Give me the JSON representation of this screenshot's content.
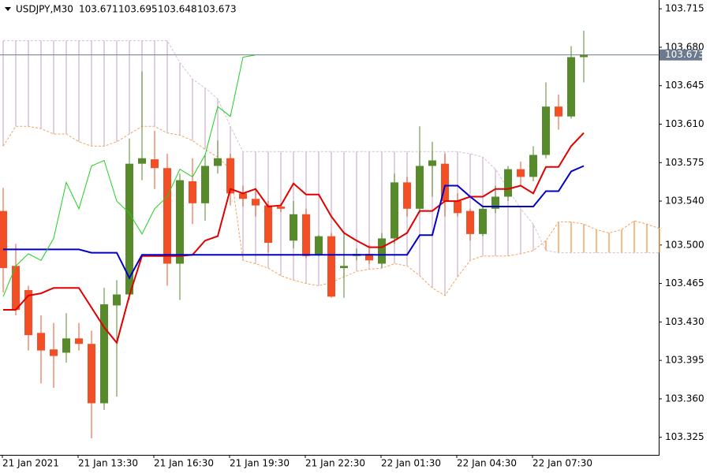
{
  "chart_data": {
    "type": "candlestick",
    "symbol": "USDJPY,M30",
    "header_values": [
      103.671,
      103.695,
      103.648,
      103.673
    ],
    "x": [
      "21 Jan 2021",
      null,
      null,
      null,
      null,
      null,
      "21 Jan 13:30",
      null,
      null,
      null,
      null,
      null,
      "21 Jan 16:30",
      null,
      null,
      null,
      null,
      null,
      "21 Jan 19:30",
      null,
      null,
      null,
      null,
      null,
      "21 Jan 22:30",
      null,
      null,
      null,
      null,
      null,
      "22 Jan 01:30",
      null,
      null,
      null,
      null,
      null,
      "22 Jan 04:30",
      null,
      null,
      null,
      null,
      null,
      "22 Jan 07:30",
      null,
      null,
      null,
      null,
      null,
      null,
      null,
      null,
      null,
      null
    ],
    "open": [
      103.531,
      103.481,
      103.459,
      103.42,
      103.405,
      103.402,
      103.415,
      103.41,
      103.356,
      103.445,
      103.455,
      103.574,
      103.578,
      103.57,
      103.483,
      103.558,
      103.538,
      103.572,
      103.579,
      103.547,
      103.542,
      103.536,
      103.535,
      103.504,
      103.528,
      103.491,
      103.508,
      103.479,
      103.49,
      103.492,
      103.483,
      103.506,
      103.557,
      103.533,
      103.572,
      103.574,
      103.54,
      103.531,
      103.51,
      103.533,
      103.544,
      103.569,
      103.562,
      103.582,
      103.626,
      103.617,
      103.671,
      null,
      null,
      null,
      null,
      null,
      null
    ],
    "high": [
      103.552,
      103.501,
      103.463,
      103.436,
      103.429,
      103.438,
      103.429,
      103.422,
      103.461,
      103.468,
      103.597,
      103.658,
      103.604,
      103.583,
      103.565,
      103.579,
      103.583,
      103.595,
      103.583,
      103.554,
      103.551,
      103.54,
      103.538,
      103.54,
      103.533,
      103.509,
      103.511,
      103.511,
      103.497,
      103.5,
      103.511,
      103.565,
      103.562,
      103.608,
      103.594,
      103.583,
      103.547,
      103.533,
      103.536,
      103.554,
      103.572,
      103.576,
      103.59,
      103.648,
      103.637,
      103.681,
      103.695,
      null,
      null,
      null,
      null,
      null,
      null
    ],
    "low": [
      103.457,
      103.436,
      103.404,
      103.374,
      103.37,
      103.393,
      103.404,
      103.324,
      103.35,
      103.362,
      103.45,
      103.559,
      103.551,
      103.463,
      103.45,
      103.519,
      103.522,
      103.565,
      103.536,
      103.535,
      103.526,
      103.493,
      103.53,
      103.497,
      103.488,
      103.49,
      103.452,
      103.452,
      103.486,
      103.483,
      103.479,
      103.501,
      103.526,
      103.529,
      103.544,
      103.526,
      103.526,
      103.504,
      103.508,
      103.529,
      103.54,
      103.554,
      103.558,
      103.579,
      103.605,
      103.615,
      103.648,
      null,
      null,
      null,
      null,
      null,
      null
    ],
    "close": [
      103.479,
      103.441,
      103.418,
      103.404,
      103.399,
      103.415,
      103.41,
      103.356,
      103.446,
      103.455,
      103.574,
      103.579,
      103.57,
      103.483,
      103.559,
      103.538,
      103.572,
      103.579,
      103.547,
      103.542,
      103.536,
      103.502,
      103.533,
      103.528,
      103.49,
      103.508,
      103.453,
      103.481,
      103.492,
      103.486,
      103.506,
      103.557,
      103.533,
      103.572,
      103.577,
      103.54,
      103.529,
      103.51,
      103.533,
      103.544,
      103.569,
      103.562,
      103.582,
      103.626,
      103.617,
      103.671,
      103.673,
      null,
      null,
      null,
      null,
      null,
      null
    ],
    "up_color": "#568a2a",
    "down_color": "#f24f26",
    "lines": [
      {
        "color": "#e00000",
        "width": 2,
        "values": [
          103.441,
          103.441,
          103.454,
          103.456,
          103.461,
          103.461,
          103.461,
          103.443,
          103.425,
          103.411,
          103.454,
          103.49,
          103.49,
          103.49,
          103.49,
          103.491,
          103.504,
          103.508,
          103.551,
          103.547,
          103.551,
          103.535,
          103.536,
          103.556,
          103.546,
          103.546,
          103.526,
          103.511,
          103.504,
          103.498,
          103.498,
          103.504,
          103.511,
          103.531,
          103.531,
          103.54,
          103.54,
          103.544,
          103.544,
          103.551,
          103.551,
          103.554,
          103.547,
          103.571,
          103.571,
          103.59,
          103.602,
          null,
          null,
          null,
          null,
          null,
          null
        ]
      },
      {
        "color": "#0000c8",
        "width": 2,
        "values": [
          103.496,
          103.496,
          103.496,
          103.496,
          103.496,
          103.496,
          103.496,
          103.493,
          103.493,
          103.493,
          103.47,
          103.491,
          103.491,
          103.491,
          103.491,
          103.491,
          103.491,
          103.491,
          103.491,
          103.491,
          103.491,
          103.491,
          103.491,
          103.491,
          103.491,
          103.491,
          103.491,
          103.491,
          103.491,
          103.491,
          103.491,
          103.491,
          103.491,
          103.509,
          103.509,
          103.554,
          103.554,
          103.544,
          103.535,
          103.535,
          103.535,
          103.535,
          103.535,
          103.549,
          103.549,
          103.567,
          103.572,
          null,
          null,
          null,
          null,
          null,
          null
        ]
      },
      {
        "color": "#1fcf1f",
        "width": 1,
        "values": [
          103.453,
          103.481,
          103.492,
          103.486,
          103.506,
          103.557,
          103.533,
          103.572,
          103.577,
          103.54,
          103.529,
          103.51,
          103.533,
          103.544,
          103.569,
          103.562,
          103.582,
          103.626,
          103.617,
          103.671,
          103.673,
          null,
          null,
          null,
          null,
          null,
          null,
          null,
          null,
          null,
          null,
          null,
          null,
          null,
          null,
          null,
          null,
          null,
          null,
          null,
          null,
          null,
          null,
          null,
          null,
          null,
          null,
          null,
          null,
          null,
          null,
          null,
          null
        ]
      }
    ],
    "cloud": {
      "span_a": [
        103.59,
        103.608,
        103.608,
        103.606,
        103.601,
        103.601,
        103.594,
        103.59,
        103.59,
        103.594,
        103.601,
        103.608,
        103.608,
        103.602,
        103.6,
        103.595,
        103.587,
        103.58,
        103.569,
        103.486,
        103.483,
        103.479,
        103.472,
        103.468,
        103.465,
        103.463,
        103.466,
        103.471,
        103.476,
        103.478,
        103.479,
        103.483,
        103.481,
        103.472,
        103.461,
        103.454,
        103.471,
        103.486,
        103.49,
        103.49,
        103.49,
        103.492,
        103.495,
        103.504,
        103.521,
        103.521,
        103.519,
        103.514,
        103.511,
        103.514,
        103.522,
        103.519,
        103.515
      ],
      "span_b": [
        103.686,
        103.686,
        103.686,
        103.686,
        103.686,
        103.686,
        103.686,
        103.686,
        103.686,
        103.686,
        103.686,
        103.686,
        103.686,
        103.686,
        103.666,
        103.651,
        103.643,
        103.633,
        103.608,
        103.585,
        103.585,
        103.585,
        103.585,
        103.585,
        103.585,
        103.585,
        103.585,
        103.585,
        103.585,
        103.585,
        103.585,
        103.585,
        103.585,
        103.585,
        103.585,
        103.585,
        103.585,
        103.583,
        103.58,
        103.569,
        103.551,
        103.533,
        103.519,
        103.495,
        103.493,
        103.493,
        103.493,
        103.493,
        103.493,
        103.493,
        103.493,
        103.493,
        103.493
      ],
      "up_color": "#f4a460",
      "down_color": "#d8bfd8"
    },
    "last_price": 103.673,
    "ylim": [
      103.309,
      103.723
    ],
    "yticks": [
      103.325,
      {
        "value": 103.36,
        "label": "103.360"
      },
      103.395,
      {
        "value": 103.43,
        "label": "103.430"
      },
      103.465,
      {
        "value": 103.5,
        "label": "103.500"
      },
      {
        "value": 103.54,
        "label": "103.540"
      },
      103.575,
      {
        "value": 103.61,
        "label": "103.610"
      },
      103.645,
      {
        "value": 103.68,
        "label": "103.680"
      },
      103.715
    ]
  }
}
